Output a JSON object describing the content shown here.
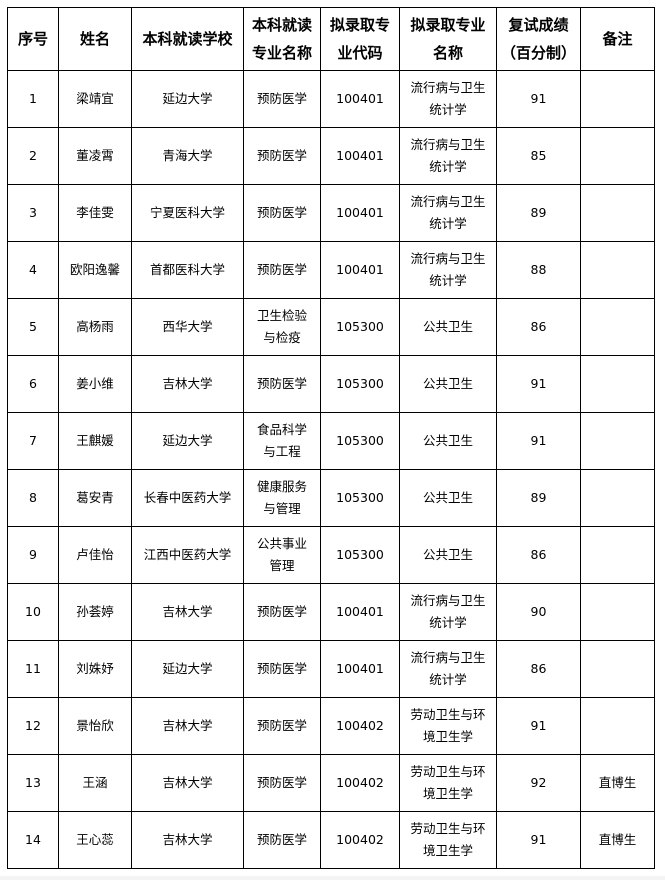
{
  "headers": [
    "序号",
    "姓名",
    "本科就读学校",
    "本科就读\n专业名称",
    "拟录取专\n业代码",
    "拟录取专业\n名称",
    "复试成绩\n（百分制）",
    "备注"
  ],
  "rows": [
    {
      "no": "1",
      "name": "梁靖宜",
      "school": "延边大学",
      "major": "预防医学",
      "code": "100401",
      "program": "流行病与卫生统计学",
      "score": "91",
      "note": ""
    },
    {
      "no": "2",
      "name": "董凌霄",
      "school": "青海大学",
      "major": "预防医学",
      "code": "100401",
      "program": "流行病与卫生统计学",
      "score": "85",
      "note": ""
    },
    {
      "no": "3",
      "name": "李佳雯",
      "school": "宁夏医科大学",
      "major": "预防医学",
      "code": "100401",
      "program": "流行病与卫生统计学",
      "score": "89",
      "note": ""
    },
    {
      "no": "4",
      "name": "欧阳逸馨",
      "school": "首都医科大学",
      "major": "预防医学",
      "code": "100401",
      "program": "流行病与卫生统计学",
      "score": "88",
      "note": ""
    },
    {
      "no": "5",
      "name": "高杨雨",
      "school": "西华大学",
      "major": "卫生检验与检疫",
      "code": "105300",
      "program": "公共卫生",
      "score": "86",
      "note": ""
    },
    {
      "no": "6",
      "name": "姜小维",
      "school": "吉林大学",
      "major": "预防医学",
      "code": "105300",
      "program": "公共卫生",
      "score": "91",
      "note": ""
    },
    {
      "no": "7",
      "name": "王麒媛",
      "school": "延边大学",
      "major": "食品科学与工程",
      "code": "105300",
      "program": "公共卫生",
      "score": "91",
      "note": ""
    },
    {
      "no": "8",
      "name": "葛安青",
      "school": "长春中医药大学",
      "major": "健康服务与管理",
      "code": "105300",
      "program": "公共卫生",
      "score": "89",
      "note": ""
    },
    {
      "no": "9",
      "name": "卢佳怡",
      "school": "江西中医药大学",
      "major": "公共事业管理",
      "code": "105300",
      "program": "公共卫生",
      "score": "86",
      "note": ""
    },
    {
      "no": "10",
      "name": "孙荟婷",
      "school": "吉林大学",
      "major": "预防医学",
      "code": "100401",
      "program": "流行病与卫生统计学",
      "score": "90",
      "note": ""
    },
    {
      "no": "11",
      "name": "刘姝妤",
      "school": "延边大学",
      "major": "预防医学",
      "code": "100401",
      "program": "流行病与卫生统计学",
      "score": "86",
      "note": ""
    },
    {
      "no": "12",
      "name": "景怡欣",
      "school": "吉林大学",
      "major": "预防医学",
      "code": "100402",
      "program": "劳动卫生与环境卫生学",
      "score": "91",
      "note": ""
    },
    {
      "no": "13",
      "name": "王涵",
      "school": "吉林大学",
      "major": "预防医学",
      "code": "100402",
      "program": "劳动卫生与环境卫生学",
      "score": "92",
      "note": "直博生"
    },
    {
      "no": "14",
      "name": "王心蕊",
      "school": "吉林大学",
      "major": "预防医学",
      "code": "100402",
      "program": "劳动卫生与环境卫生学",
      "score": "91",
      "note": "直博生"
    }
  ]
}
